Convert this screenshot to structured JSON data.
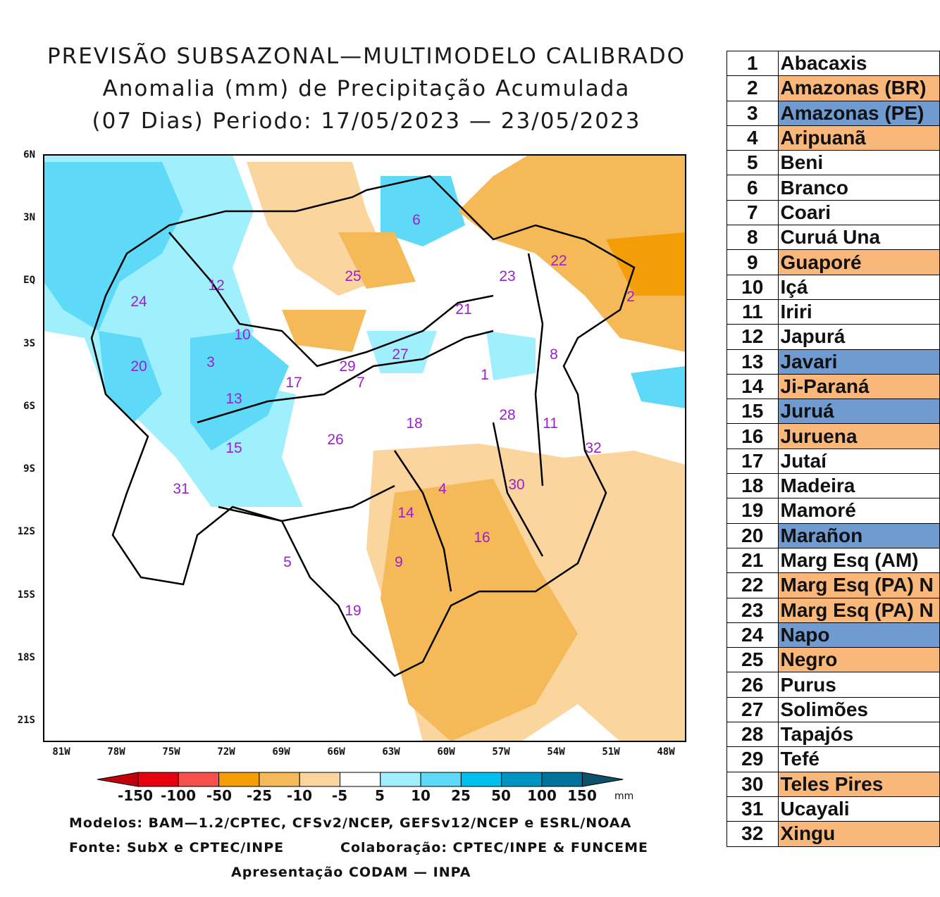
{
  "title": {
    "line1": "PREVISÃO SUBSAZONAL—MULTIMODELO CALIBRADO",
    "line2": "Anomalia (mm) de Precipitação Acumulada",
    "line3": "(07 Dias) Periodo: 17/05/2023 — 23/05/2023"
  },
  "axes": {
    "lat_labels": [
      "6N",
      "3N",
      "EQ",
      "3S",
      "6S",
      "9S",
      "12S",
      "15S",
      "18S",
      "21S"
    ],
    "lon_labels": [
      "81W",
      "78W",
      "75W",
      "72W",
      "69W",
      "66W",
      "63W",
      "60W",
      "57W",
      "54W",
      "51W",
      "48W"
    ]
  },
  "map_labels": [
    "6",
    "22",
    "12",
    "25",
    "23",
    "2",
    "24",
    "21",
    "10",
    "27",
    "8",
    "3",
    "20",
    "29",
    "7",
    "1",
    "17",
    "13",
    "28",
    "11",
    "18",
    "15",
    "26",
    "32",
    "4",
    "30",
    "31",
    "14",
    "16",
    "5",
    "9",
    "19"
  ],
  "colorbar": {
    "labels": [
      "-150",
      "-100",
      "-50",
      "-25",
      "-10",
      "-5",
      "5",
      "10",
      "25",
      "50",
      "100",
      "150"
    ],
    "unit": "mm",
    "colors": [
      "#c1000b",
      "#e7000e",
      "#f5504d",
      "#f49d06",
      "#f6b957",
      "#fbd59e",
      "#ffffff",
      "#9ff0fc",
      "#5ed9f7",
      "#00c0f0",
      "#0094c2",
      "#00739c",
      "#0e4f6b"
    ]
  },
  "credits": {
    "models": "Modelos: BAM—1.2/CPTEC, CFSv2/NCEP, GEFSv12/NCEP e ESRL/NOAA",
    "source": "Fonte: SubX e CPTEC/INPE",
    "collab": "Colaboração: CPTEC/INPE & FUNCEME",
    "presentation": "Apresentação CODAM — INPA"
  },
  "basin_table": [
    {
      "num": "1",
      "name": "Abacaxis",
      "status": "white"
    },
    {
      "num": "2",
      "name": "Amazonas (BR)",
      "status": "orange"
    },
    {
      "num": "3",
      "name": "Amazonas (PE)",
      "status": "blue"
    },
    {
      "num": "4",
      "name": "Aripuanã",
      "status": "orange"
    },
    {
      "num": "5",
      "name": "Beni",
      "status": "white"
    },
    {
      "num": "6",
      "name": "Branco",
      "status": "white"
    },
    {
      "num": "7",
      "name": "Coari",
      "status": "white"
    },
    {
      "num": "8",
      "name": "Curuá Una",
      "status": "white"
    },
    {
      "num": "9",
      "name": "Guaporé",
      "status": "orange"
    },
    {
      "num": "10",
      "name": "Içá",
      "status": "white"
    },
    {
      "num": "11",
      "name": "Iriri",
      "status": "white"
    },
    {
      "num": "12",
      "name": "Japurá",
      "status": "white"
    },
    {
      "num": "13",
      "name": "Javari",
      "status": "blue"
    },
    {
      "num": "14",
      "name": "Ji-Paraná",
      "status": "orange"
    },
    {
      "num": "15",
      "name": "Juruá",
      "status": "blue"
    },
    {
      "num": "16",
      "name": "Juruena",
      "status": "orange"
    },
    {
      "num": "17",
      "name": "Jutaí",
      "status": "white"
    },
    {
      "num": "18",
      "name": "Madeira",
      "status": "white"
    },
    {
      "num": "19",
      "name": "Mamoré",
      "status": "white"
    },
    {
      "num": "20",
      "name": "Marañon",
      "status": "blue"
    },
    {
      "num": "21",
      "name": "Marg Esq (AM)",
      "status": "white"
    },
    {
      "num": "22",
      "name": "Marg Esq (PA) N",
      "status": "orange"
    },
    {
      "num": "23",
      "name": "Marg Esq (PA) N",
      "status": "orange"
    },
    {
      "num": "24",
      "name": "Napo",
      "status": "blue"
    },
    {
      "num": "25",
      "name": "Negro",
      "status": "orange"
    },
    {
      "num": "26",
      "name": "Purus",
      "status": "white"
    },
    {
      "num": "27",
      "name": "Solimões",
      "status": "white"
    },
    {
      "num": "28",
      "name": "Tapajós",
      "status": "white"
    },
    {
      "num": "29",
      "name": "Tefé",
      "status": "white"
    },
    {
      "num": "30",
      "name": "Teles Pires",
      "status": "orange"
    },
    {
      "num": "31",
      "name": "Ucayali",
      "status": "white"
    },
    {
      "num": "32",
      "name": "Xingu",
      "status": "orange"
    }
  ]
}
